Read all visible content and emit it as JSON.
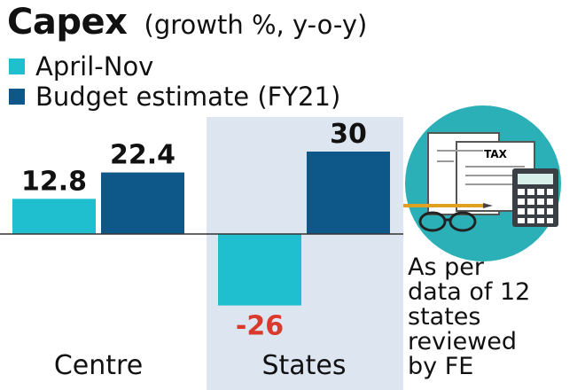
{
  "chart_data": {
    "type": "bar",
    "title": "Capex",
    "subtitle": "(growth %, y-o-y)",
    "categories": [
      "Centre",
      "States"
    ],
    "series": [
      {
        "name": "April-Nov",
        "values": [
          12.8,
          -26
        ],
        "color": "#1fbfcf"
      },
      {
        "name": "Budget estimate (FY21)",
        "values": [
          22.4,
          30
        ],
        "color": "#0d5789"
      }
    ],
    "value_labels": [
      [
        "12.8",
        "-26"
      ],
      [
        "22.4",
        "30"
      ]
    ],
    "negative_label_color": "#d93a2b",
    "highlight_category": "States",
    "highlight_color": "#dde5f0",
    "legend_position": "top-left",
    "grid": false
  },
  "note": {
    "lines": [
      "As per",
      "data of 12",
      "states",
      "reviewed",
      "by FE"
    ]
  },
  "illustration": {
    "icon": "tax-calculator-icon",
    "circle_color": "#2bb0b8",
    "paper_label": "TAX"
  }
}
